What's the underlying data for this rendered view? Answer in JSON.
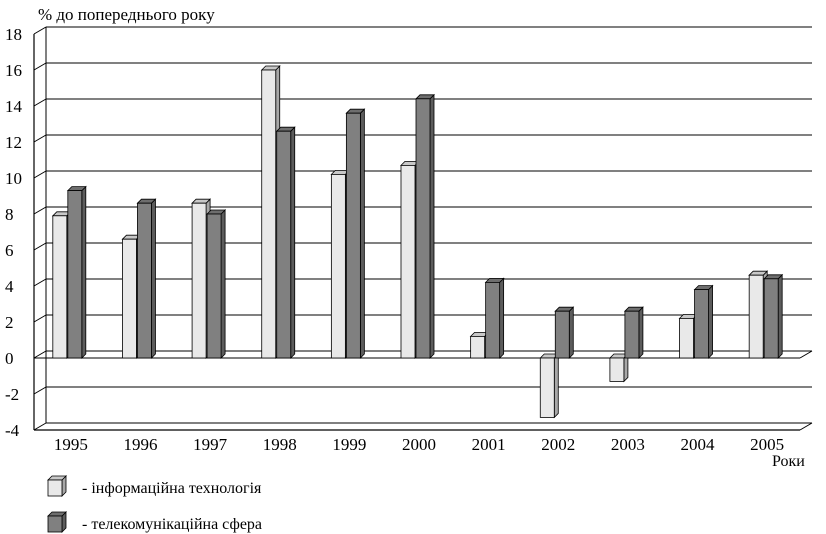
{
  "chart_data": {
    "type": "bar",
    "ylabel": "%   до попереднього року",
    "xlabel": "Роки",
    "ylim": [
      -4,
      18
    ],
    "yticks": [
      -4,
      -2,
      0,
      2,
      4,
      6,
      8,
      10,
      12,
      14,
      16,
      18
    ],
    "grid": true,
    "legend_position": "bottom-left",
    "categories": [
      "1995",
      "1996",
      "1997",
      "1998",
      "1999",
      "2000",
      "2001",
      "2002",
      "2003",
      "2004",
      "2005"
    ],
    "series": [
      {
        "name": "- інформаційна технологія",
        "color": "#e9e9e9",
        "values": [
          7.9,
          6.6,
          8.6,
          16.0,
          10.2,
          10.7,
          1.2,
          -3.3,
          -1.3,
          2.2,
          4.6
        ]
      },
      {
        "name": "- телекомунікаційна сфера",
        "color": "#808080",
        "values": [
          9.3,
          8.6,
          8.0,
          12.6,
          13.6,
          14.4,
          4.2,
          2.6,
          2.6,
          3.8,
          4.4
        ]
      }
    ]
  }
}
